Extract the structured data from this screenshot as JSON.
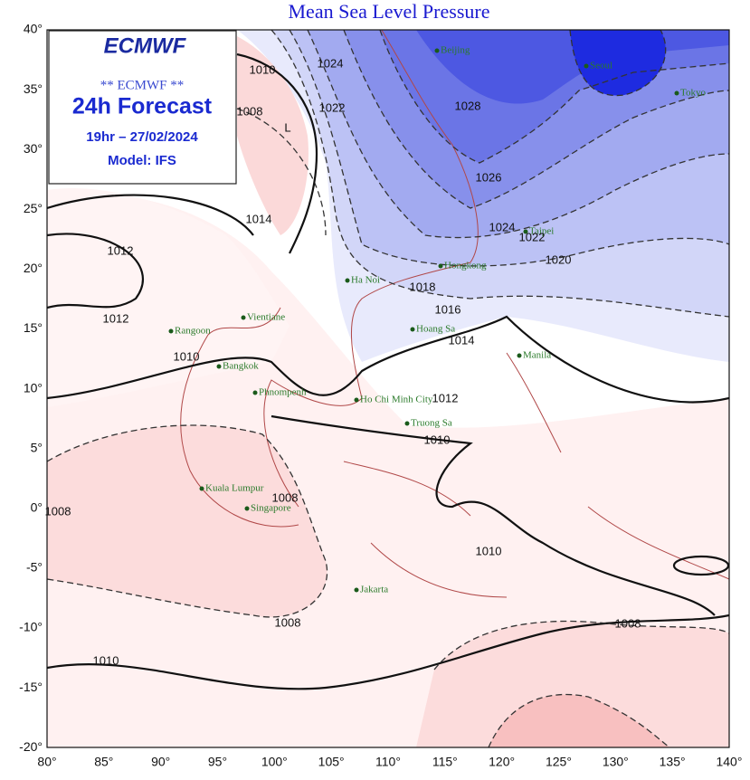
{
  "header": {
    "title": "Mean Sea Level Pressure"
  },
  "legend_box": {
    "logo": "ECMWF",
    "source": "** ECMWF **",
    "forecast": "24h Forecast",
    "time": "19hr – 27/02/2024",
    "model": "Model: IFS"
  },
  "axes": {
    "lat_labels": [
      "40°",
      "35°",
      "30°",
      "25°",
      "20°",
      "15°",
      "10°",
      "5°",
      "0°",
      "-5°",
      "-10°",
      "-15°",
      "-20°"
    ],
    "lon_labels": [
      "80°",
      "85°",
      "90°",
      "95°",
      "100°",
      "105°",
      "110°",
      "115°",
      "120°",
      "125°",
      "130°",
      "135°",
      "140°"
    ]
  },
  "cities": [
    "Beijing",
    "Seoul",
    "Tokyo",
    "Taipei",
    "Hongkong",
    "Ha Noi",
    "Vientiane",
    "Rangoon",
    "Hoang Sa",
    "Manila",
    "Bangkok",
    "Phnompenh",
    "Ho Chi Minh City",
    "Truong Sa",
    "Kuala Lumpur",
    "Singapore",
    "Jakarta"
  ],
  "isobar_labels": [
    "1024",
    "1028",
    "1026",
    "1024",
    "1022",
    "1020",
    "1018",
    "1016",
    "1014",
    "1012",
    "1010",
    "1012",
    "1012",
    "1010",
    "1008",
    "1008",
    "1008",
    "1010",
    "1008",
    "1010",
    "1010",
    "1008",
    "1014",
    "1022",
    "L"
  ]
}
